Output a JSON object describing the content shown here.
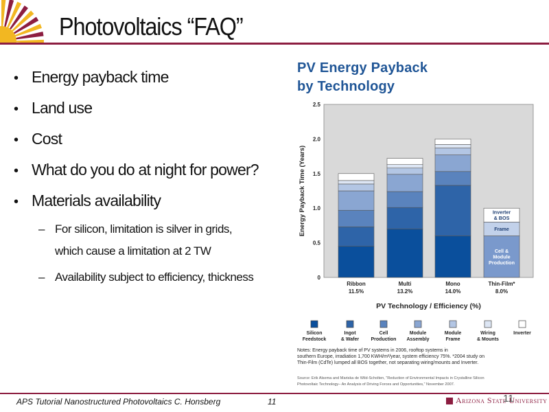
{
  "slide": {
    "title": "Photovoltaics “FAQ”",
    "bullets": [
      "Energy payback time",
      "Land use",
      "Cost",
      "What do you do at night for power?",
      "Materials availability"
    ],
    "sub_bullets": [
      {
        "line1": "For silicon, limitation is silver in grids,",
        "line2": "which cause a limitation at 2 TW"
      },
      {
        "line1": "Availability subject to efficiency, thickness",
        "line2": ""
      }
    ],
    "footer_text": "APS Tutorial Nanostructured Photovoltaics   C. Honsberg",
    "footer_number": "11",
    "page_number": "11",
    "logo_text": "Arizona State University"
  },
  "figure": {
    "title_line1": "PV Energy Payback",
    "title_line2": "by Technology",
    "notes_line1": "Notes: Energy payback time of PV systems in 2006, rooftop systems in",
    "notes_line2": "southern Europe, irradiation 1,700 KWH/m²/year, system efficiency 75%.  *2004 study on",
    "notes_line3": "Thin-Film (CdTe) lumped all BOS together, not separating wiring/mounts and Inverter.",
    "source_line1": "Source: Erik Alsema and Mariska de Wild-Scholten, “Reduction of Environmental Impacts in Crystalline Silicon",
    "source_line2": "Photovoltaic Technology– An Analysis of Driving Forces and Opportunities,” November 2007."
  },
  "chart_data": {
    "type": "bar",
    "stacked": true,
    "xlabel": "PV Technology / Efficiency (%)",
    "ylabel": "Energy Payback Time (Years)",
    "ylim": [
      0,
      2.5
    ],
    "yticks": [
      "0",
      "0.5",
      "1.0",
      "1.5",
      "2.0",
      "2.5"
    ],
    "categories": [
      "Ribbon",
      "Multi",
      "Mono",
      "Thin-Film*"
    ],
    "category_sublabels": [
      "11.5%",
      "13.2%",
      "14.0%",
      "8.0%"
    ],
    "series": [
      {
        "name": "Silicon Feedstock",
        "color": "#0a4f9c",
        "values": [
          0.45,
          0.7,
          0.6,
          0
        ]
      },
      {
        "name": "Ingot & Wafer",
        "color": "#2e64a8",
        "values": [
          0.28,
          0.31,
          0.73,
          0
        ]
      },
      {
        "name": "Cell Production",
        "color": "#5a83bd",
        "values": [
          0.24,
          0.23,
          0.2,
          0
        ]
      },
      {
        "name": "Module Assembly",
        "color": "#8aa6d2",
        "values": [
          0.28,
          0.25,
          0.24,
          0
        ]
      },
      {
        "name": "Module Frame",
        "color": "#b3c6e4",
        "values": [
          0.1,
          0.09,
          0.1,
          0
        ]
      },
      {
        "name": "Wiring & Mounts",
        "color": "#dde6f4",
        "values": [
          0.05,
          0.05,
          0.05,
          0
        ]
      },
      {
        "name": "Inverter",
        "color": "#ffffff",
        "values": [
          0.1,
          0.09,
          0.08,
          0
        ]
      }
    ],
    "thin_film_segments": [
      {
        "label": "Cell & Module Production",
        "color": "#7a99cc",
        "value": 0.6
      },
      {
        "label": "Frame",
        "color": "#c2d1ea",
        "value": 0.2
      },
      {
        "label": "Inverter & BOS",
        "color": "#ffffff",
        "value": 0.2
      }
    ],
    "legend_labels": [
      [
        "Silicon",
        "Feedstock"
      ],
      [
        "Ingot",
        "& Wafer"
      ],
      [
        "Cell",
        "Production"
      ],
      [
        "Module",
        "Assembly"
      ],
      [
        "Module",
        "Frame"
      ],
      [
        "Wiring",
        "& Mounts"
      ],
      [
        "Inverter",
        ""
      ]
    ],
    "legend_position": "bottom",
    "grid": false,
    "plot_background": "#d9d9d9"
  }
}
